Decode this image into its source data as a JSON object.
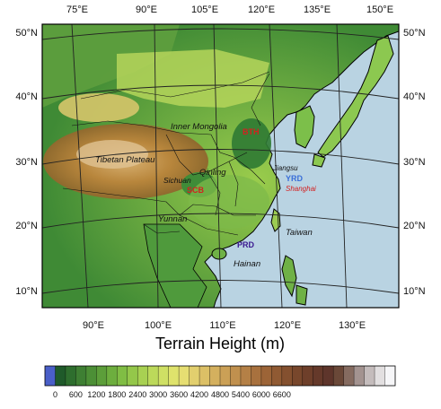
{
  "title": "Terrain Height (m)",
  "top_lon_ticks": [
    "75°E",
    "90°E",
    "105°E",
    "120°E",
    "135°E",
    "150°E"
  ],
  "bottom_lon_ticks": [
    "90°E",
    "100°E",
    "110°E",
    "120°E",
    "130°E"
  ],
  "left_lat_ticks": [
    "50°N",
    "40°N",
    "30°N",
    "20°N",
    "10°N"
  ],
  "right_lat_ticks": [
    "50°N",
    "40°N",
    "30°N",
    "20°N",
    "10°N"
  ],
  "regions": [
    {
      "id": "inner-mongolia",
      "label": "Inner Mongolia"
    },
    {
      "id": "tibetan-plateau",
      "label": "Tibetan Plateau"
    },
    {
      "id": "qinling",
      "label": "Qinling"
    },
    {
      "id": "sichuan",
      "label": "Sichuan"
    },
    {
      "id": "yunnan",
      "label": "Yunnan"
    },
    {
      "id": "jiangsu",
      "label": "Jiangsu"
    },
    {
      "id": "shanghai",
      "label": "Shanghai"
    },
    {
      "id": "taiwan",
      "label": "Taiwan"
    },
    {
      "id": "hainan",
      "label": "Hainan"
    }
  ],
  "clusters": [
    {
      "id": "bth",
      "label": "BTH",
      "color": "#d42020"
    },
    {
      "id": "scb",
      "label": "SCB",
      "color": "#d42020"
    },
    {
      "id": "yrd",
      "label": "YRD",
      "color": "#3a6fd8"
    },
    {
      "id": "prd",
      "label": "PRD",
      "color": "#3a1890"
    }
  ],
  "colorbar": {
    "labels": [
      "0",
      "600",
      "1200",
      "1800",
      "2400",
      "3000",
      "3600",
      "4200",
      "4800",
      "5400",
      "6000",
      "6600"
    ],
    "colors": [
      "#4a5fc8",
      "#1f5a2a",
      "#2e6e2e",
      "#3e7f33",
      "#4c8f36",
      "#5c9e3a",
      "#6dae3e",
      "#80bd44",
      "#94c74a",
      "#a8d152",
      "#bcd95a",
      "#cfe064",
      "#dfe36c",
      "#e6de72",
      "#e2cf6e",
      "#dcc066",
      "#d4b05e",
      "#cba056",
      "#c0904e",
      "#b48046",
      "#a8713e",
      "#9c6437",
      "#905a33",
      "#84502f",
      "#78472c",
      "#6e3f2a",
      "#65392a",
      "#5e352b",
      "#6a4838",
      "#856b60",
      "#a39390",
      "#c4bcbc",
      "#e2dfe0",
      "#f6f6f8"
    ]
  },
  "colors": {
    "ocean": "#b9d3e2",
    "coast": "#000000",
    "grid": "#222222"
  }
}
